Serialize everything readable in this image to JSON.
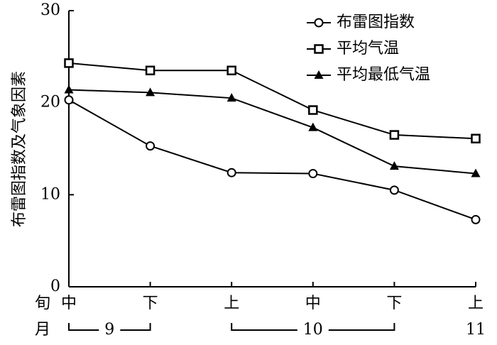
{
  "chart_data": {
    "type": "line",
    "y_label": "布雷图指数及气象因素",
    "x_row_labels": [
      "旬",
      "月"
    ],
    "categories": [
      "中",
      "下",
      "上",
      "中",
      "下",
      "上"
    ],
    "months": [
      "9",
      "9",
      "10",
      "10",
      "10",
      "11"
    ],
    "series": [
      {
        "name": "布雷图指数",
        "marker": "circle",
        "color": "#000000",
        "values": [
          20.3,
          15.3,
          12.4,
          12.3,
          10.5,
          7.3
        ]
      },
      {
        "name": "平均气温",
        "marker": "square",
        "color": "#000000",
        "values": [
          24.3,
          23.5,
          23.5,
          19.2,
          16.5,
          16.1
        ]
      },
      {
        "name": "平均最低气温",
        "marker": "triangle",
        "color": "#000000",
        "values": [
          21.4,
          21.1,
          20.5,
          17.3,
          13.1,
          12.3
        ]
      }
    ],
    "ylim": [
      0,
      30
    ],
    "yticks": [
      0,
      10,
      20,
      30
    ],
    "legend": "upper right"
  }
}
